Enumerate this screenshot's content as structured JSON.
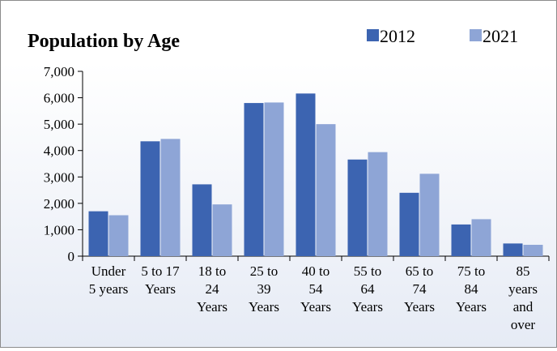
{
  "chart_data": {
    "type": "bar",
    "title": "Population by Age",
    "categories": [
      [
        "Under",
        "5 years"
      ],
      [
        "5 to 17",
        "Years"
      ],
      [
        "18 to",
        "24",
        "Years"
      ],
      [
        "25 to",
        "39",
        "Years"
      ],
      [
        "40 to",
        "54",
        "Years"
      ],
      [
        "55 to",
        "64",
        "Years"
      ],
      [
        "65 to",
        "74",
        "Years"
      ],
      [
        "75 to",
        "84",
        "Years"
      ],
      [
        "85",
        "years",
        "and",
        "over"
      ]
    ],
    "series": [
      {
        "name": "2012",
        "color": "#3c64b1",
        "values": [
          1700,
          4350,
          2720,
          5800,
          6160,
          3660,
          2400,
          1200,
          480
        ]
      },
      {
        "name": "2021",
        "color": "#8ea5d6",
        "values": [
          1550,
          4440,
          1960,
          5820,
          5000,
          3940,
          3120,
          1400,
          430
        ]
      }
    ],
    "ylim": [
      0,
      7000
    ],
    "yticks": [
      "0",
      "1,000",
      "2,000",
      "3,000",
      "4,000",
      "5,000",
      "6,000",
      "7,000"
    ],
    "xlabel": "",
    "ylabel": "",
    "grid": false,
    "legend_position": "top-right"
  }
}
